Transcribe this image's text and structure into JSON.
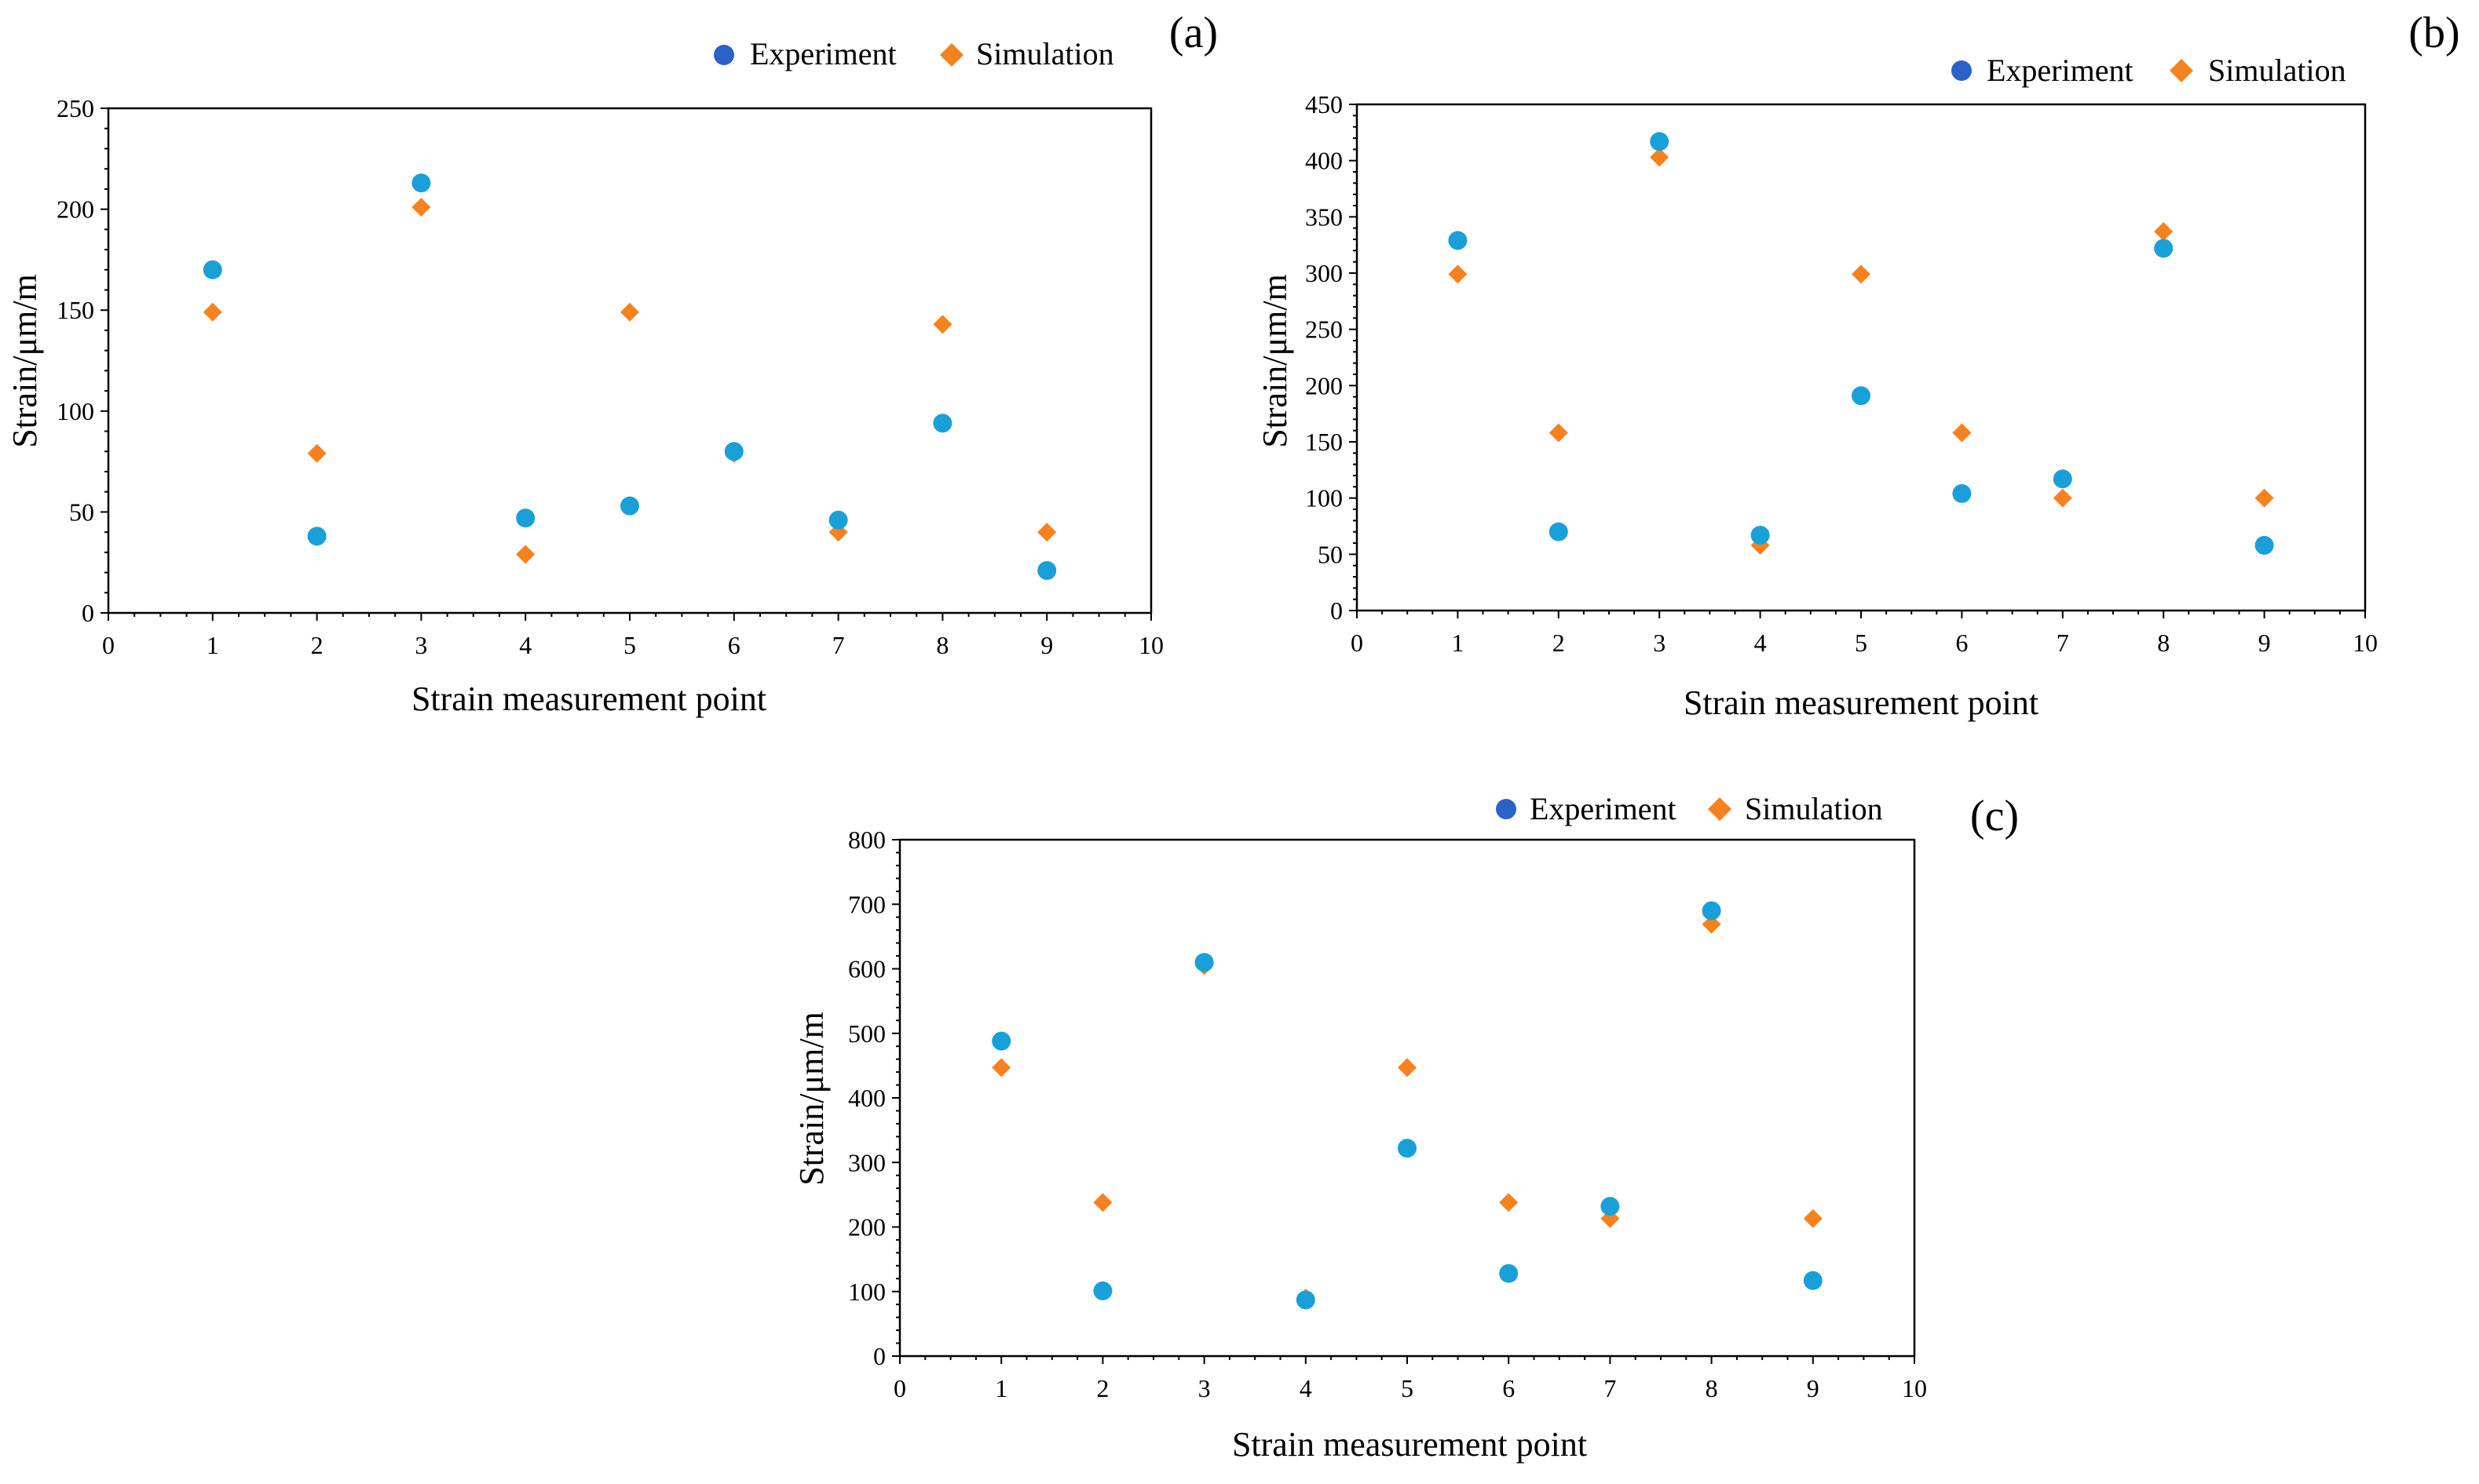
{
  "figure": {
    "colors": {
      "experiment": "#1aa0d8",
      "experiment_legend": "#2a62c8",
      "simulation": "#f6821f",
      "axis": "#000000"
    }
  },
  "chart_data": [
    {
      "id": "a",
      "type": "scatter",
      "panel_label": "(a)",
      "xlabel": "Strain measurement point",
      "ylabel": "Strain/μm/m",
      "xlim": [
        0,
        10
      ],
      "ylim": [
        0,
        250
      ],
      "xticks": [
        0,
        1,
        2,
        3,
        4,
        5,
        6,
        7,
        8,
        9,
        10
      ],
      "yticks": [
        0,
        50,
        100,
        150,
        200,
        250
      ],
      "legend_position": "top-right",
      "series": [
        {
          "name": "Experiment",
          "marker": "circle",
          "x": [
            1,
            2,
            3,
            4,
            5,
            6,
            7,
            8,
            9
          ],
          "y": [
            170,
            38,
            213,
            47,
            53,
            80,
            46,
            94,
            21
          ]
        },
        {
          "name": "Simulation",
          "marker": "diamond",
          "x": [
            1,
            2,
            3,
            4,
            5,
            6,
            7,
            8,
            9
          ],
          "y": [
            149,
            79,
            201,
            29,
            149,
            79,
            40,
            143,
            40
          ]
        }
      ]
    },
    {
      "id": "b",
      "type": "scatter",
      "panel_label": "(b)",
      "xlabel": "Strain measurement point",
      "ylabel": "Strain/μm/m",
      "xlim": [
        0,
        10
      ],
      "ylim": [
        0,
        450
      ],
      "xticks": [
        0,
        1,
        2,
        3,
        4,
        5,
        6,
        7,
        8,
        9,
        10
      ],
      "yticks": [
        0,
        50,
        100,
        150,
        200,
        250,
        300,
        350,
        400,
        450
      ],
      "legend_position": "top-right",
      "series": [
        {
          "name": "Experiment",
          "marker": "circle",
          "x": [
            1,
            2,
            3,
            4,
            5,
            6,
            7,
            8,
            9
          ],
          "y": [
            329,
            70,
            417,
            67,
            191,
            104,
            117,
            322,
            58
          ]
        },
        {
          "name": "Simulation",
          "marker": "diamond",
          "x": [
            1,
            2,
            3,
            4,
            5,
            6,
            7,
            8,
            9
          ],
          "y": [
            299,
            158,
            403,
            58,
            299,
            158,
            100,
            337,
            100
          ]
        }
      ]
    },
    {
      "id": "c",
      "type": "scatter",
      "panel_label": "(c)",
      "xlabel": "Strain measurement point",
      "ylabel": "Strain/μm/m",
      "xlim": [
        0,
        10
      ],
      "ylim": [
        0,
        800
      ],
      "xticks": [
        0,
        1,
        2,
        3,
        4,
        5,
        6,
        7,
        8,
        9,
        10
      ],
      "yticks": [
        0,
        100,
        200,
        300,
        400,
        500,
        600,
        700,
        800
      ],
      "legend_position": "top-right",
      "series": [
        {
          "name": "Experiment",
          "marker": "circle",
          "x": [
            1,
            2,
            3,
            4,
            5,
            6,
            7,
            8,
            9
          ],
          "y": [
            488,
            101,
            610,
            87,
            322,
            128,
            232,
            690,
            117
          ]
        },
        {
          "name": "Simulation",
          "marker": "diamond",
          "x": [
            1,
            2,
            3,
            4,
            5,
            6,
            7,
            8,
            9
          ],
          "y": [
            447,
            238,
            605,
            90,
            447,
            238,
            213,
            669,
            213
          ]
        }
      ]
    }
  ]
}
